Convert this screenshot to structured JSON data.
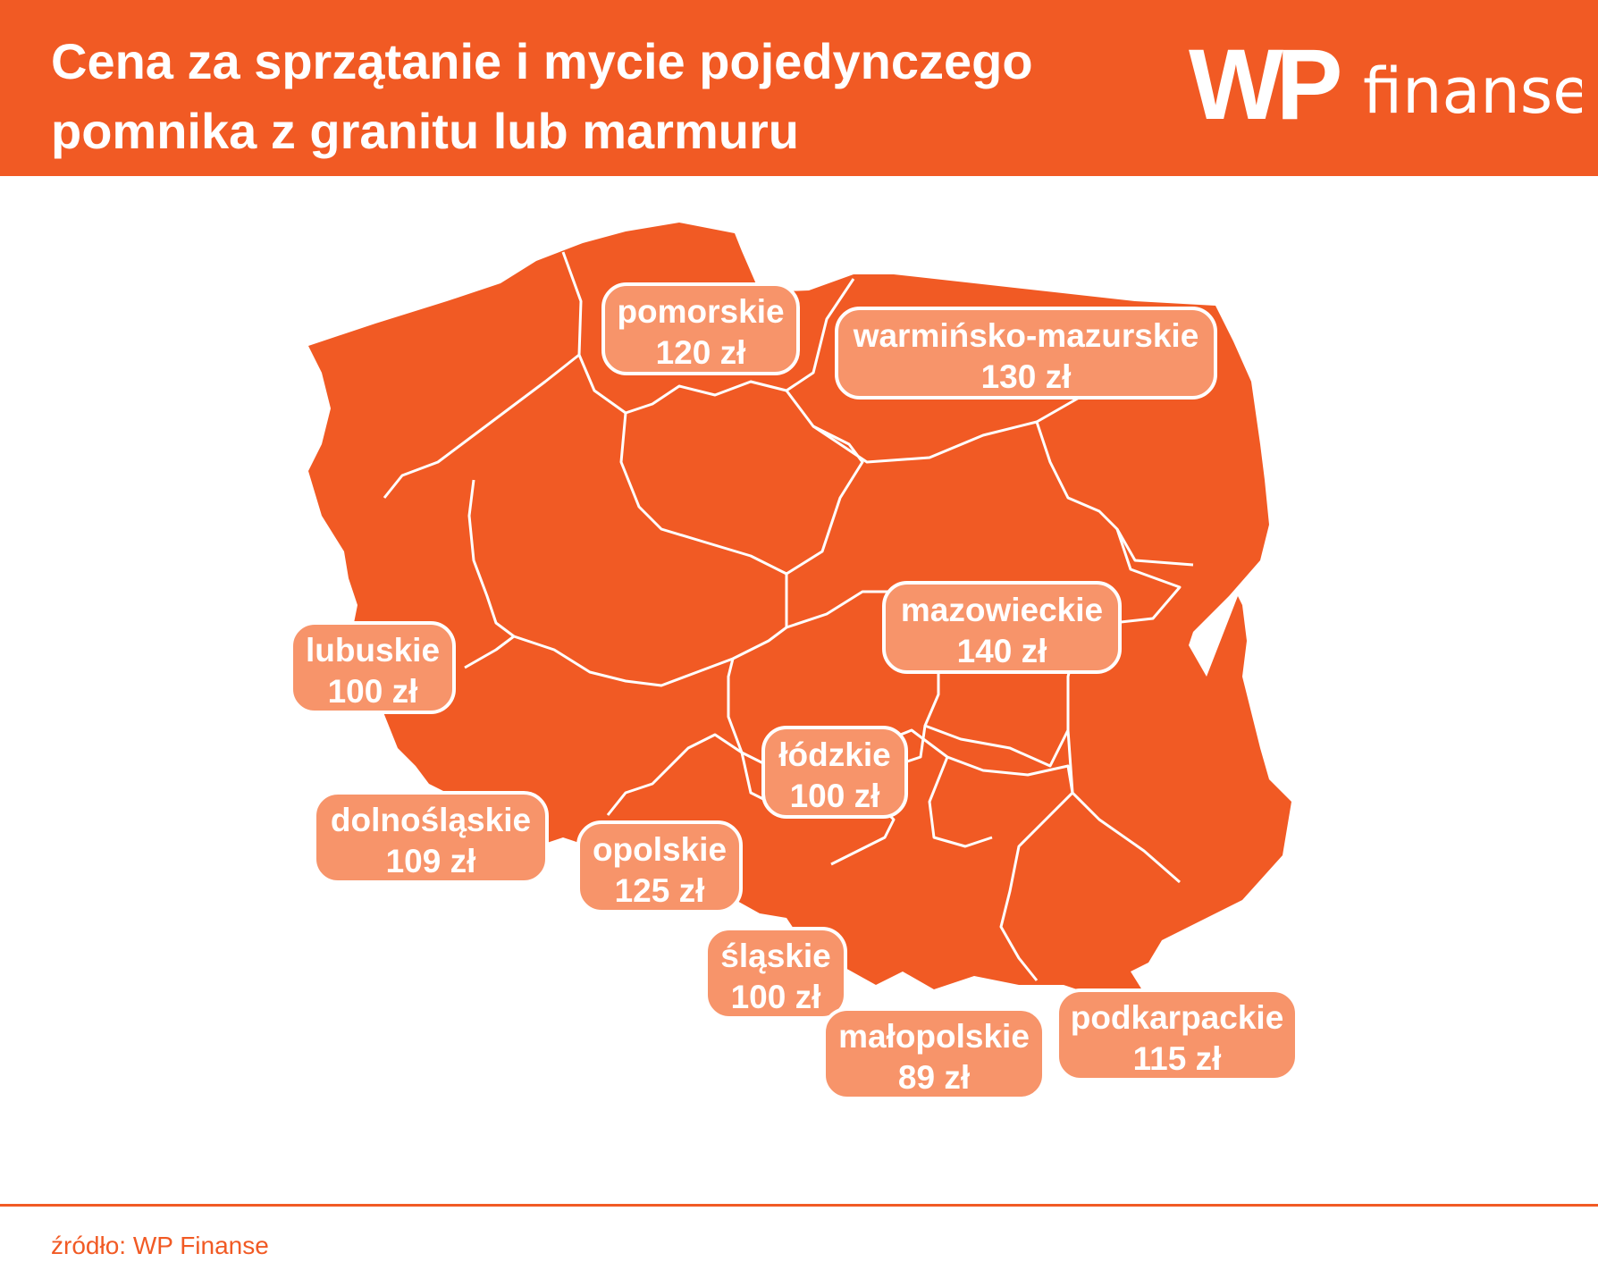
{
  "header": {
    "title_line1": "Cena za sprzątanie i mycie pojedynczego",
    "title_line2": "pomnika z granitu lub marmuru",
    "logo_mark": "WP",
    "logo_text": "finanse"
  },
  "colors": {
    "brand": "#f15a24",
    "label_fill": "#f7946a",
    "border": "#ffffff"
  },
  "regions": [
    {
      "name": "pomorskie",
      "price": "120 zł"
    },
    {
      "name": "warmińsko-mazurskie",
      "price": "130 zł"
    },
    {
      "name": "mazowieckie",
      "price": "140 zł"
    },
    {
      "name": "lubuskie",
      "price": "100 zł"
    },
    {
      "name": "łódzkie",
      "price": "100 zł"
    },
    {
      "name": "dolnośląskie",
      "price": "109 zł"
    },
    {
      "name": "opolskie",
      "price": "125 zł"
    },
    {
      "name": "śląskie",
      "price": "100 zł"
    },
    {
      "name": "małopolskie",
      "price": "89 zł"
    },
    {
      "name": "podkarpackie",
      "price": "115 zł"
    }
  ],
  "footer": {
    "source": "źródło: WP Finanse"
  }
}
